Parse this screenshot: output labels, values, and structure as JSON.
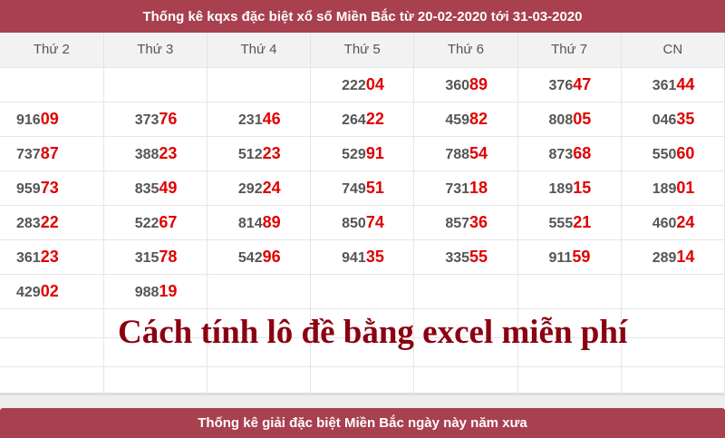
{
  "header": {
    "title": "Thống kê kqxs đặc biệt xổ số Miền Bắc từ 20-02-2020 tới 31-03-2020"
  },
  "table": {
    "columns": [
      "Thứ 2",
      "Thứ 3",
      "Thứ 4",
      "Thứ 5",
      "Thứ 6",
      "Thứ 7",
      "CN"
    ],
    "rows": [
      [
        "",
        "",
        "",
        "22204",
        "36089",
        "37647",
        "36144"
      ],
      [
        "91609",
        "37376",
        "23146",
        "26422",
        "45982",
        "80805",
        "04635"
      ],
      [
        "73787",
        "38823",
        "51223",
        "52991",
        "78854",
        "87368",
        "55060"
      ],
      [
        "95973",
        "83549",
        "29224",
        "74951",
        "73118",
        "18915",
        "18901"
      ],
      [
        "28322",
        "52267",
        "81489",
        "85074",
        "85736",
        "55521",
        "46024"
      ],
      [
        "36123",
        "31578",
        "54296",
        "94135",
        "33555",
        "91159",
        "28914"
      ],
      [
        "42902",
        "98819",
        "",
        "",
        "",
        "",
        ""
      ]
    ],
    "empty_rows": 3
  },
  "overlay_text": "Cách tính lô đề bằng excel miễn phí",
  "footer": {
    "title": "Thống kê giải đặc biệt Miền Bắc ngày này năm xưa"
  },
  "colors": {
    "banner": "#a8404f",
    "highlight": "#e00000",
    "overlay": "#8b0010"
  }
}
